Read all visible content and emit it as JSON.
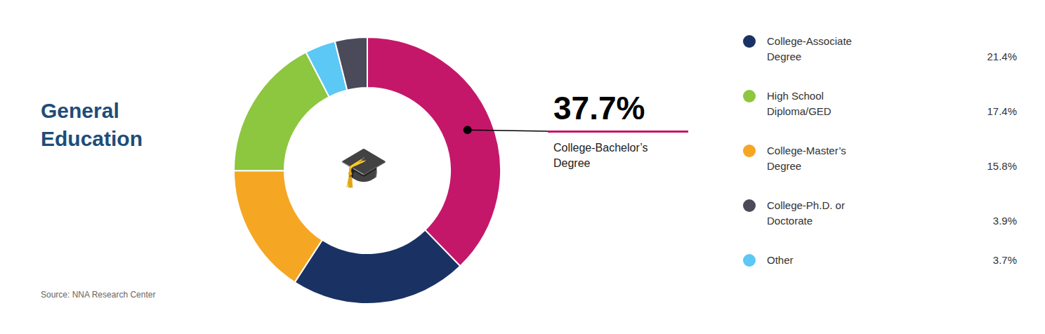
{
  "chart_data": {
    "type": "pie",
    "title": "General Education",
    "categories": [
      "College-Bachelor’s Degree",
      "College-Associate Degree",
      "College-Master’s Degree",
      "High School Diploma/GED",
      "Other",
      "College-Ph.D. or Doctorate"
    ],
    "values": [
      37.7,
      21.4,
      15.8,
      17.4,
      3.7,
      3.9
    ],
    "value_labels": [
      "37.7%",
      "21.4%",
      "15.8%",
      "17.4%",
      "3.7%",
      "3.9%"
    ],
    "colors": [
      "#c5176a",
      "#1a3263",
      "#f5a623",
      "#8dc63f",
      "#5bc8f5",
      "#4a4a5a"
    ],
    "legend": "right",
    "annotations": [
      "🎓",
      "Source: NNA Research Center"
    ]
  }
}
